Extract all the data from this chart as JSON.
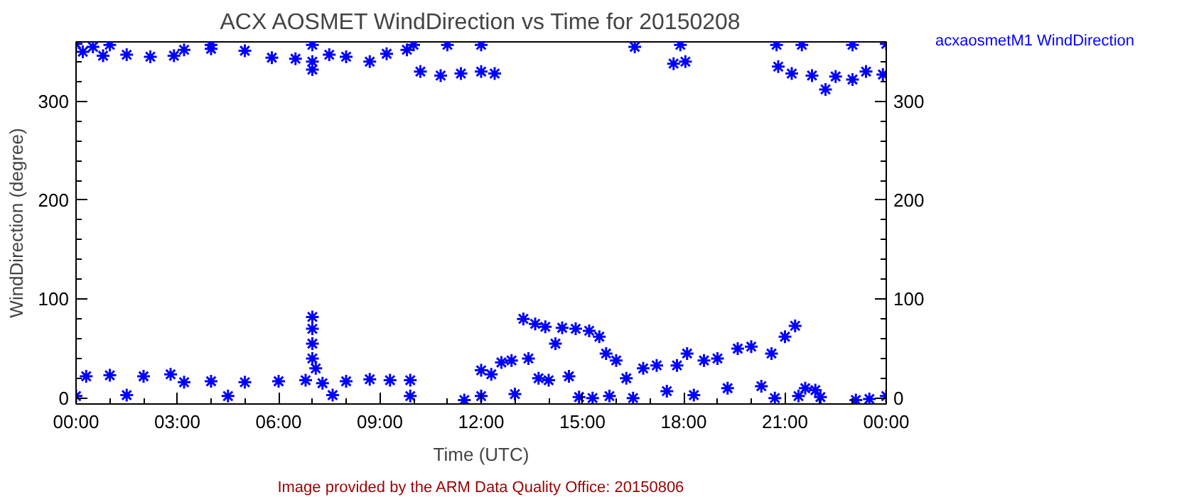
{
  "chart_data": {
    "type": "scatter",
    "title": "ACX AOSMET WindDirection vs Time for 20150208",
    "xlabel": "Time (UTC)",
    "ylabel": "WindDirection (degree)",
    "annotations": [
      "Image provided by the ARM Data Quality Office: 20150806"
    ],
    "xlim": [
      0,
      24
    ],
    "xticks": [
      {
        "value": 0,
        "label": "00:00"
      },
      {
        "value": 3,
        "label": "03:00"
      },
      {
        "value": 6,
        "label": "06:00"
      },
      {
        "value": 9,
        "label": "09:00"
      },
      {
        "value": 12,
        "label": "12:00"
      },
      {
        "value": 15,
        "label": "15:00"
      },
      {
        "value": 18,
        "label": "18:00"
      },
      {
        "value": 21,
        "label": "21:00"
      },
      {
        "value": 24,
        "label": "00:00"
      }
    ],
    "ylim": [
      -6,
      360
    ],
    "yticks": [
      0,
      100,
      200,
      300
    ],
    "y2lim": [
      -6,
      360
    ],
    "y2ticks": [
      0,
      100,
      200,
      300
    ],
    "grid": false,
    "legend": "top right",
    "marker": "cross",
    "series": [
      {
        "name": "acxaosmetM1 WindDirection",
        "color": "#0000ff",
        "x": [
          0,
          0.2,
          0.5,
          0.8,
          1,
          1.5,
          2.2,
          2.9,
          3.2,
          4,
          4,
          5,
          5.8,
          6.5,
          7,
          7,
          7,
          7.5,
          8,
          8.7,
          9.2,
          9.8,
          10,
          10.2,
          10.8,
          11,
          11.4,
          12,
          12,
          12.4,
          16.55,
          17.7,
          17.9,
          18.05,
          20.75,
          20.8,
          21.2,
          21.5,
          21.8,
          22.2,
          22.5,
          23,
          23,
          23.4,
          23.9,
          24,
          0,
          0.3,
          1,
          1.5,
          2,
          2.8,
          3.2,
          4,
          4.5,
          5,
          6,
          6.8,
          7,
          7,
          7,
          7,
          7.1,
          7.3,
          7.6,
          8,
          8.7,
          9.3,
          9.9,
          9.9,
          11.5,
          12,
          12,
          12.3,
          12.6,
          12.9,
          13,
          13.25,
          13.4,
          13.6,
          13.7,
          13.9,
          14,
          14.2,
          14.4,
          14.6,
          14.8,
          14.9,
          15.2,
          15.3,
          15.5,
          15.7,
          15.8,
          16,
          16.3,
          16.5,
          16.8,
          17.2,
          17.5,
          17.8,
          18.1,
          18.3,
          18.6,
          19,
          19.3,
          19.6,
          20,
          20.3,
          20.6,
          20.7,
          21,
          21.3,
          21.4,
          21.6,
          21.9,
          22.05,
          23.1,
          23.5,
          24
        ],
        "values": [
          358,
          350,
          355,
          346,
          357,
          347,
          345,
          346,
          352,
          353,
          357,
          351,
          344,
          343,
          332,
          340,
          357,
          347,
          345,
          340,
          348,
          352,
          357,
          330,
          326,
          357,
          328,
          330,
          357,
          328,
          355,
          338,
          357,
          340,
          357,
          335,
          328,
          357,
          326,
          312,
          325,
          322,
          357,
          330,
          327,
          358,
          2,
          22,
          23,
          3,
          22,
          24,
          16,
          17,
          2,
          16,
          17,
          18,
          40,
          55,
          70,
          82,
          30,
          15,
          3,
          17,
          19,
          18,
          18,
          2,
          -2,
          28,
          2,
          24,
          36,
          38,
          4,
          80,
          40,
          75,
          20,
          72,
          18,
          55,
          71,
          22,
          70,
          1,
          68,
          0,
          62,
          45,
          2,
          38,
          20,
          0,
          30,
          33,
          7,
          33,
          45,
          3,
          38,
          40,
          10,
          50,
          52,
          12,
          45,
          0,
          62,
          73,
          2,
          10,
          8,
          1,
          -2,
          -1,
          2
        ]
      }
    ]
  }
}
